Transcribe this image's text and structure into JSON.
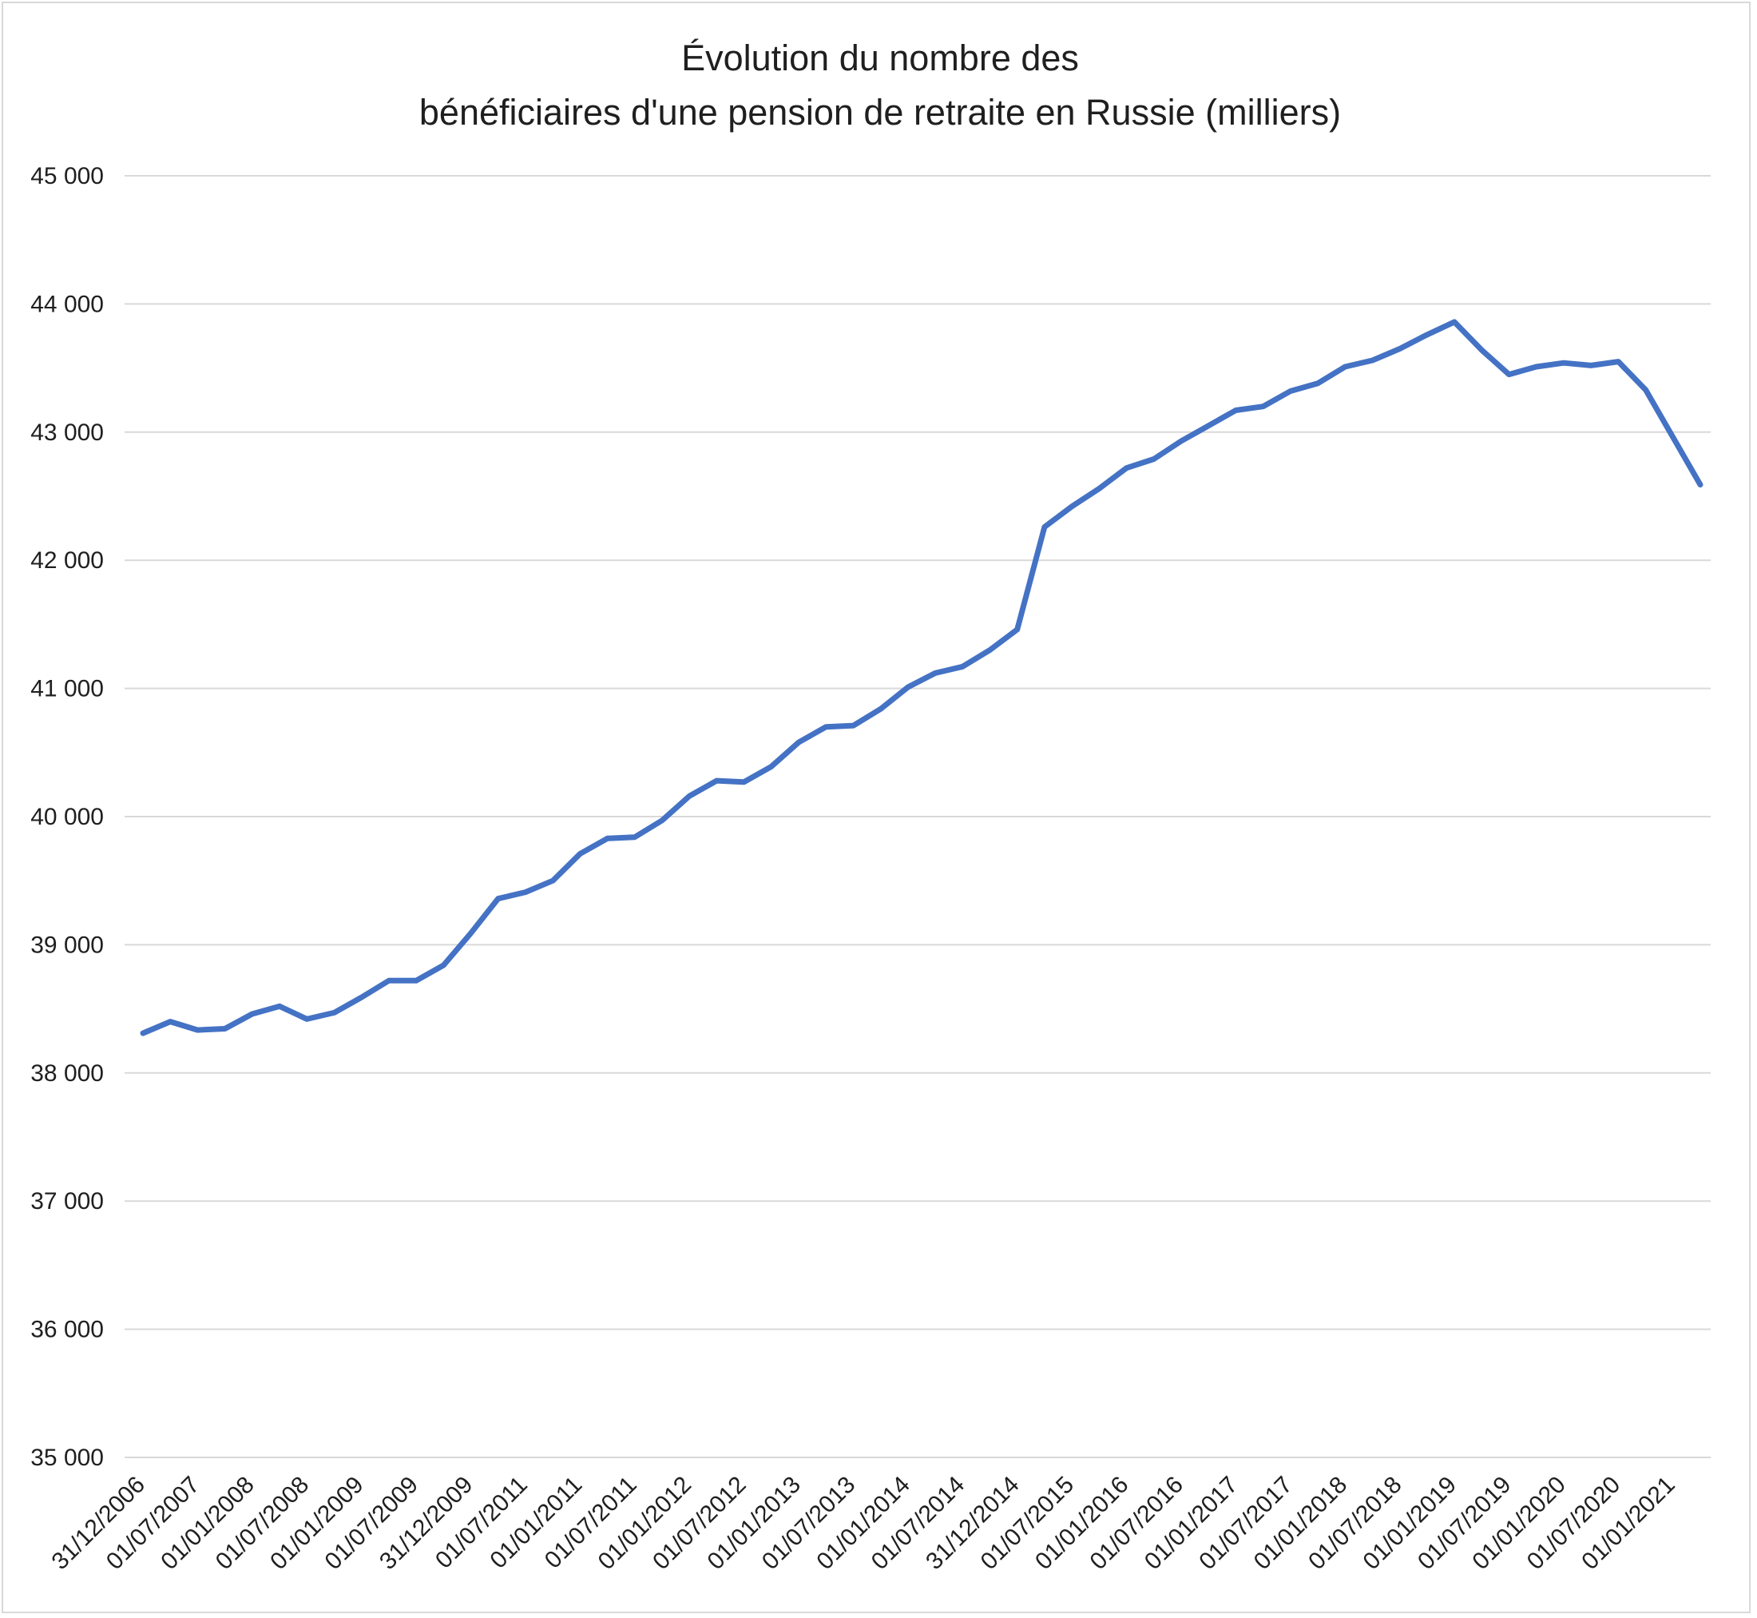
{
  "chart_data": {
    "type": "line",
    "title": [
      "Évolution du nombre des",
      "bénéficiaires d'une pension de retraite en Russie (milliers)"
    ],
    "xlabel": "",
    "ylabel": "",
    "ylim": [
      35000,
      45000
    ],
    "y_ticks": [
      35000,
      36000,
      37000,
      38000,
      39000,
      40000,
      41000,
      42000,
      43000,
      44000,
      45000
    ],
    "y_tick_labels": [
      "35 000",
      "36 000",
      "37 000",
      "38 000",
      "39 000",
      "40 000",
      "41 000",
      "42 000",
      "43 000",
      "44 000",
      "45 000"
    ],
    "x_tick_labels": [
      "31/12/2006",
      "01/07/2007",
      "01/01/2008",
      "01/07/2008",
      "01/01/2009",
      "01/07/2009",
      "31/12/2009",
      "01/07/2011",
      "01/01/2011",
      "01/07/2011",
      "01/01/2012",
      "01/07/2012",
      "01/01/2013",
      "01/07/2013",
      "01/01/2014",
      "01/07/2014",
      "31/12/2014",
      "01/07/2015",
      "01/01/2016",
      "01/07/2016",
      "01/01/2017",
      "01/07/2017",
      "01/01/2018",
      "01/07/2018",
      "01/01/2019",
      "01/07/2019",
      "01/01/2020",
      "01/07/2020",
      "01/01/2021"
    ],
    "grid": true,
    "legend": "none",
    "line_color": "#4472c4",
    "series": [
      {
        "values": [
          38310,
          38400,
          38335,
          38345,
          38460,
          38520,
          38420,
          38470,
          38590,
          38720,
          38720,
          38840,
          39090,
          39360,
          39410,
          39500,
          39710,
          39830,
          39840,
          39970,
          40160,
          40280,
          40270,
          40390,
          40580,
          40700,
          40710,
          40840,
          41010,
          41120,
          41170,
          41300,
          41460,
          42260,
          42420,
          42560,
          42720,
          42790,
          42930,
          43050,
          43170,
          43200,
          43320,
          43380,
          43510,
          43560,
          43650,
          43760,
          43860,
          43640,
          43450,
          43510,
          43540,
          43520,
          43550,
          43330,
          42960,
          42590
        ]
      }
    ]
  }
}
